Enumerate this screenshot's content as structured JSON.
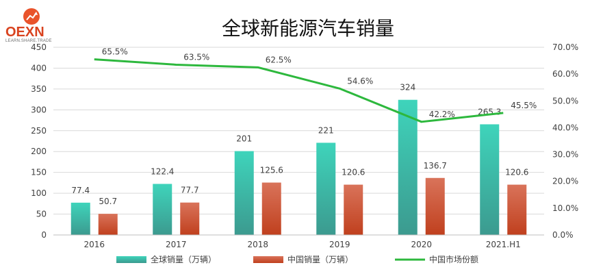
{
  "logo": {
    "text": "OEXN",
    "tagline": "LEARN.SHARE.TRADE"
  },
  "chart_data": {
    "type": "bar+line",
    "title": "全球新能源汽车销量",
    "categories": [
      "2016",
      "2017",
      "2018",
      "2019",
      "2020",
      "2021.H1"
    ],
    "series": [
      {
        "name": "全球销量（万辆）",
        "type": "bar",
        "axis": "left",
        "values": [
          77.4,
          122.4,
          201,
          221,
          324,
          265.3
        ],
        "labels": [
          "77.4",
          "122.4",
          "201",
          "221",
          "324",
          "265.3"
        ],
        "color_top": "#3ed4bb",
        "color_bottom": "#3c9a8f"
      },
      {
        "name": "中国销量（万辆）",
        "type": "bar",
        "axis": "left",
        "values": [
          50.7,
          77.7,
          125.6,
          120.6,
          136.7,
          120.6
        ],
        "labels": [
          "50.7",
          "77.7",
          "125.6",
          "120.6",
          "136.7",
          "120.6"
        ],
        "color_top": "#d9735a",
        "color_bottom": "#c0401e"
      },
      {
        "name": "中国市场份额",
        "type": "line",
        "axis": "right",
        "values": [
          65.5,
          63.5,
          62.5,
          54.6,
          42.2,
          45.5
        ],
        "labels": [
          "65.5%",
          "63.5%",
          "62.5%",
          "54.6%",
          "42.2%",
          "45.5%"
        ],
        "color": "#2db83d"
      }
    ],
    "y_left": {
      "min": 0,
      "max": 450,
      "ticks": [
        "0",
        "50",
        "100",
        "150",
        "200",
        "250",
        "300",
        "350",
        "400",
        "450"
      ]
    },
    "y_right": {
      "min": 0,
      "max": 70,
      "ticks": [
        "0.0%",
        "10.0%",
        "20.0%",
        "30.0%",
        "40.0%",
        "50.0%",
        "60.0%",
        "70.0%"
      ]
    },
    "grid": true,
    "legend_position": "bottom"
  }
}
